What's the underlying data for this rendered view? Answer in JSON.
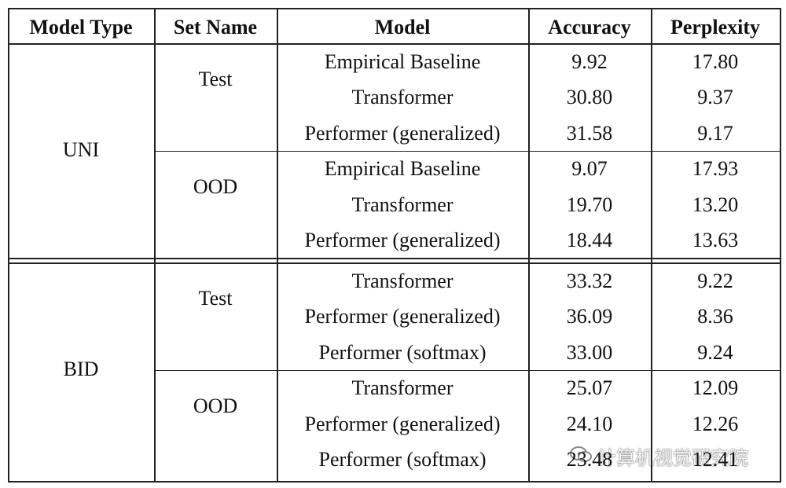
{
  "table": {
    "headers": [
      "Model Type",
      "Set Name",
      "Model",
      "Accuracy",
      "Perplexity"
    ],
    "groups": [
      {
        "model_type": "UNI",
        "sets": [
          {
            "set_name": "Test",
            "rows": [
              [
                "Empirical Baseline",
                "9.92",
                "17.80"
              ],
              [
                "Transformer",
                "30.80",
                "9.37"
              ],
              [
                "Performer (generalized)",
                "31.58",
                "9.17"
              ]
            ]
          },
          {
            "set_name": "OOD",
            "rows": [
              [
                "Empirical Baseline",
                "9.07",
                "17.93"
              ],
              [
                "Transformer",
                "19.70",
                "13.20"
              ],
              [
                "Performer (generalized)",
                "18.44",
                "13.63"
              ]
            ]
          }
        ]
      },
      {
        "model_type": "BID",
        "sets": [
          {
            "set_name": "Test",
            "rows": [
              [
                "Transformer",
                "33.32",
                "9.22"
              ],
              [
                "Performer (generalized)",
                "36.09",
                "8.36"
              ],
              [
                "Performer (softmax)",
                "33.00",
                "9.24"
              ]
            ]
          },
          {
            "set_name": "OOD",
            "rows": [
              [
                "Transformer",
                "25.07",
                "12.09"
              ],
              [
                "Performer (generalized)",
                "24.10",
                "12.26"
              ],
              [
                "Performer (softmax)",
                "23.48",
                "12.41"
              ]
            ]
          }
        ]
      }
    ]
  },
  "watermark": "计算机视觉研究院"
}
